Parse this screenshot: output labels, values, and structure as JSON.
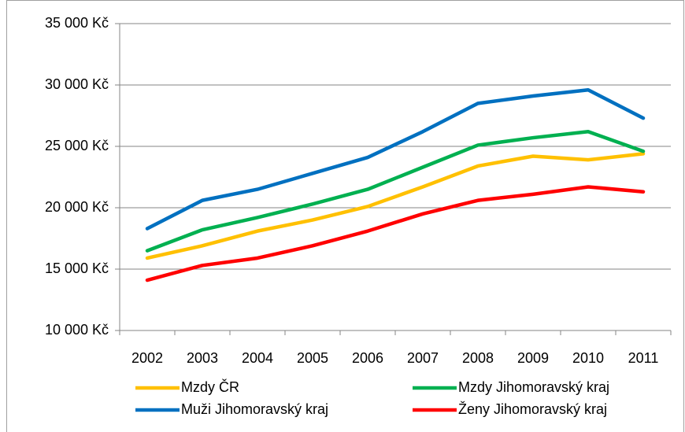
{
  "chart_data": {
    "type": "line",
    "categories": [
      "2002",
      "2003",
      "2004",
      "2005",
      "2006",
      "2007",
      "2008",
      "2009",
      "2010",
      "2011"
    ],
    "series": [
      {
        "name": "Mzdy ČR",
        "color": "#ffc000",
        "values": [
          15900,
          16900,
          18100,
          19000,
          20100,
          21700,
          23400,
          24200,
          23900,
          24400
        ]
      },
      {
        "name": "Mzdy Jihomoravský kraj",
        "color": "#00b050",
        "values": [
          16500,
          18200,
          19200,
          20300,
          21500,
          23300,
          25100,
          25700,
          26200,
          24600
        ]
      },
      {
        "name": "Muži Jihomoravský kraj",
        "color": "#0070c0",
        "values": [
          18300,
          20600,
          21500,
          22800,
          24100,
          26200,
          28500,
          29100,
          29600,
          27300
        ]
      },
      {
        "name": "Ženy Jihomoravský kraj",
        "color": "#ff0000",
        "values": [
          14100,
          15300,
          15900,
          16900,
          18100,
          19500,
          20600,
          21100,
          21700,
          21300
        ]
      }
    ],
    "ylim": [
      10000,
      35000
    ],
    "yticks": [
      {
        "value": 10000,
        "label": "10 000 Kč"
      },
      {
        "value": 15000,
        "label": "15 000 Kč"
      },
      {
        "value": 20000,
        "label": "20 000 Kč"
      },
      {
        "value": 25000,
        "label": "25 000 Kč"
      },
      {
        "value": 30000,
        "label": "30 000 Kč"
      },
      {
        "value": 35000,
        "label": "35 000 Kč"
      }
    ],
    "grid": true,
    "legend": "bottom"
  }
}
